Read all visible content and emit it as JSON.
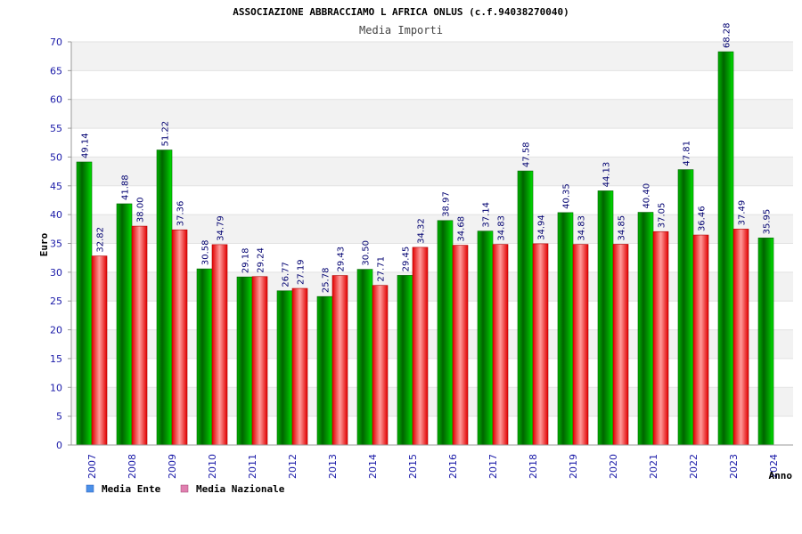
{
  "chart_data": {
    "type": "bar",
    "title": "ASSOCIAZIONE ABBRACCIAMO L AFRICA ONLUS (c.f.94038270040)",
    "subtitle": "Media Importi",
    "ylabel": "Euro",
    "xlabel": "Anno",
    "ylim": [
      0,
      70
    ],
    "y_ticks": [
      0,
      5,
      10,
      15,
      20,
      25,
      30,
      35,
      40,
      45,
      50,
      55,
      60,
      65,
      70
    ],
    "categories": [
      "2007",
      "2008",
      "2009",
      "2010",
      "2011",
      "2012",
      "2013",
      "2014",
      "2015",
      "2016",
      "2017",
      "2018",
      "2019",
      "2020",
      "2021",
      "2022",
      "2023",
      "2024"
    ],
    "series": [
      {
        "name": "Media Ente",
        "values": [
          49.14,
          41.88,
          51.22,
          30.58,
          29.18,
          26.77,
          25.78,
          30.5,
          29.45,
          38.97,
          37.14,
          47.58,
          40.35,
          44.13,
          40.4,
          47.81,
          68.28,
          35.95
        ],
        "labels": [
          "49.14",
          "41.88",
          "51.22",
          "30.58",
          "29.18",
          "26.77",
          "25.78",
          "30.50",
          "29.45",
          "38.97",
          "37.14",
          "47.58",
          "40.35",
          "44.13",
          "40.40",
          "47.81",
          "68.28",
          "35.95"
        ]
      },
      {
        "name": "Media Nazionale",
        "values": [
          32.82,
          38.0,
          37.36,
          34.79,
          29.24,
          27.19,
          29.43,
          27.71,
          34.32,
          34.68,
          34.83,
          34.94,
          34.83,
          34.85,
          37.05,
          36.46,
          37.49,
          null
        ],
        "labels": [
          "32.82",
          "38.00",
          "37.36",
          "34.79",
          "29.24",
          "27.19",
          "29.43",
          "27.71",
          "34.32",
          "34.68",
          "34.83",
          "34.94",
          "34.83",
          "34.85",
          "37.05",
          "36.46",
          "37.49",
          null
        ]
      }
    ],
    "legend_position": "bottom-left",
    "grid": true
  }
}
